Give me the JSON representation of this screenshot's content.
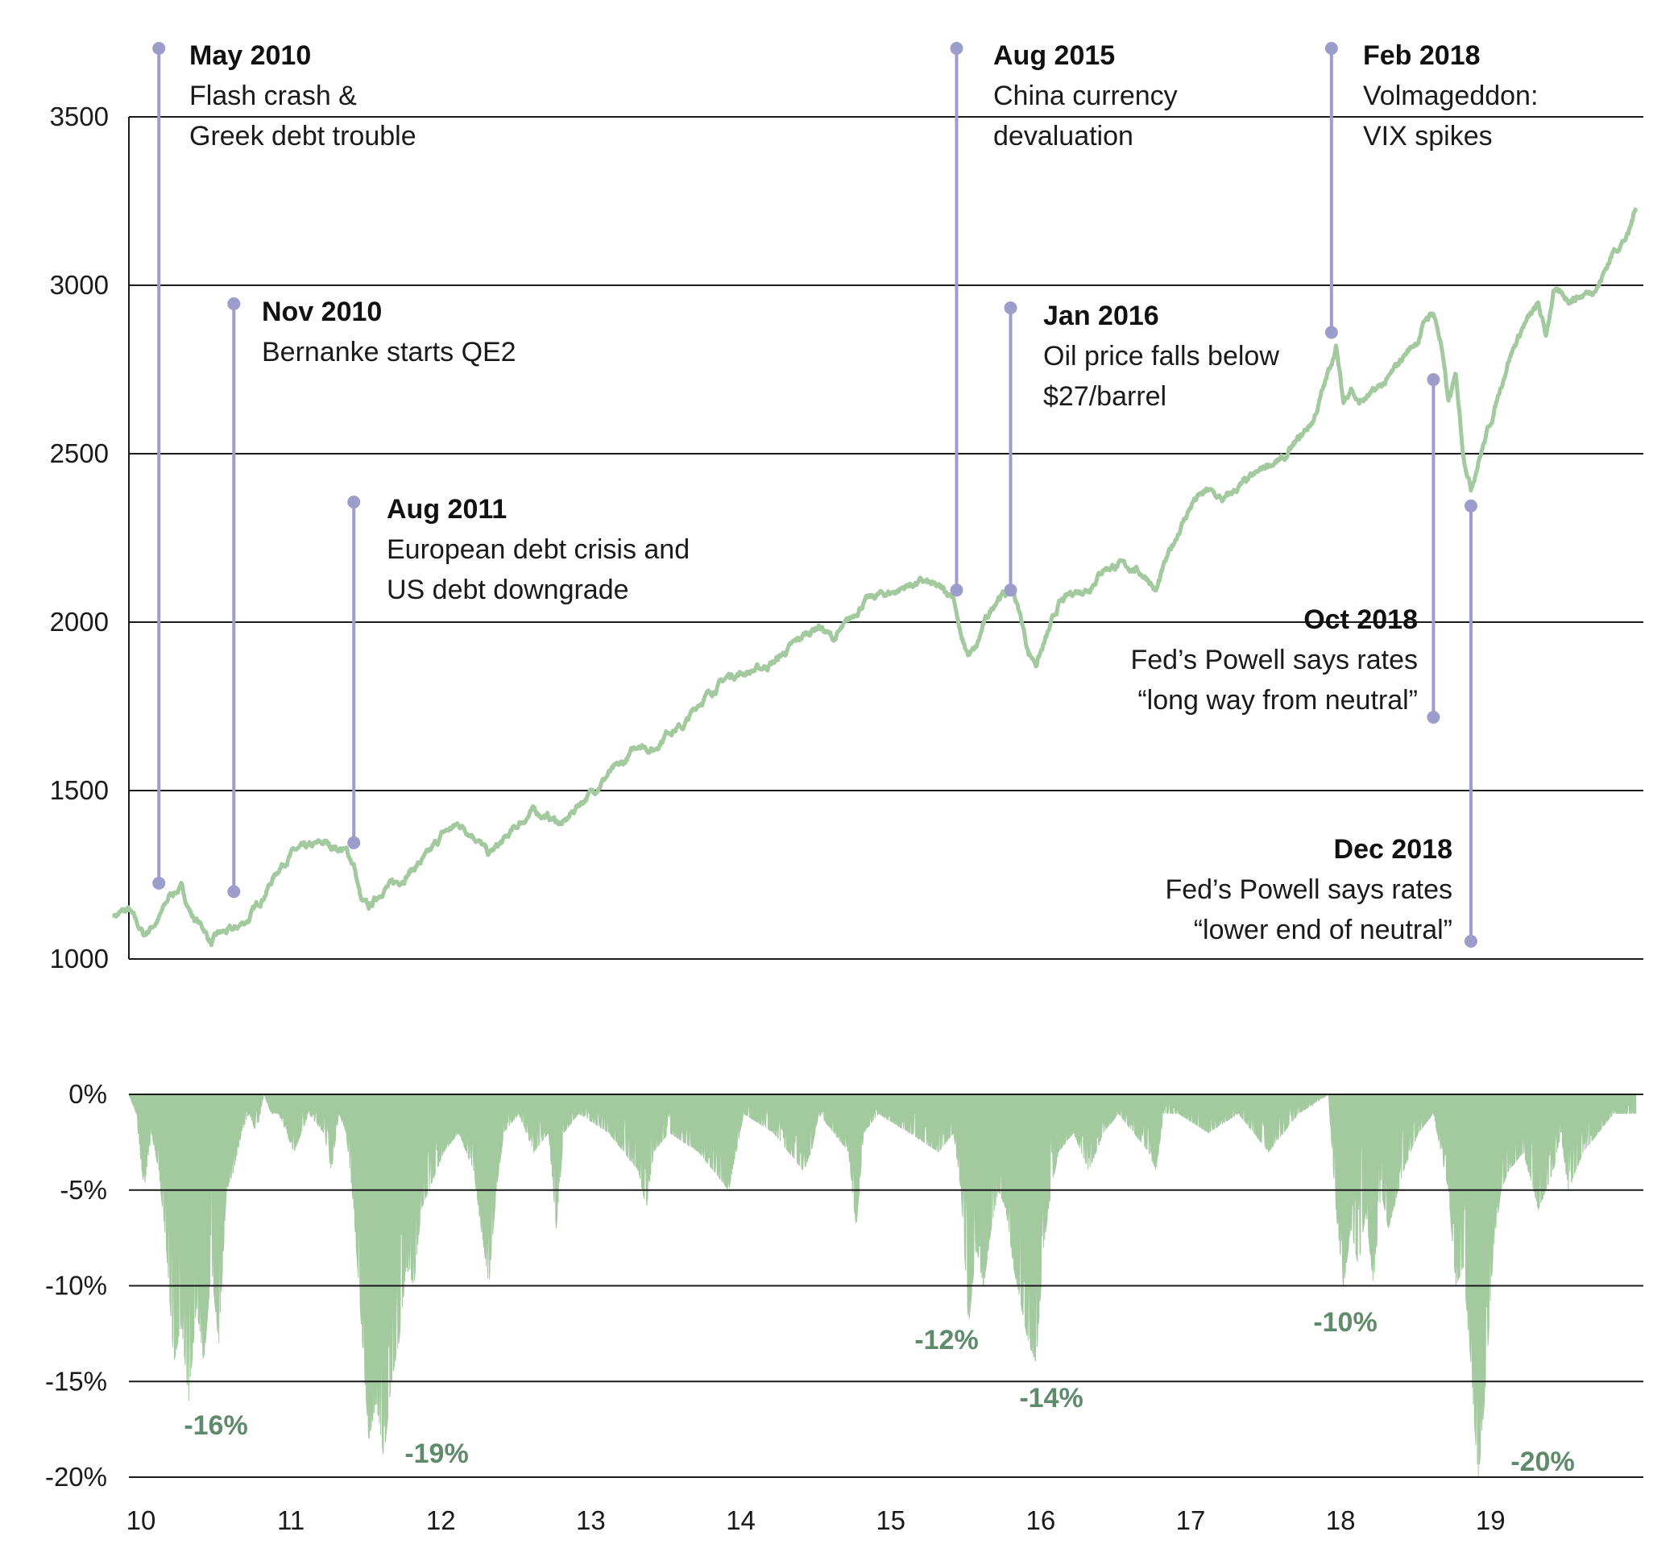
{
  "colors": {
    "price_line": "#a3c99f",
    "drawdown_fill": "#a3c99f",
    "annotation_marker": "#9d9dcc",
    "drawdown_label": "#5f8a6b",
    "grid": "#1a1a1a"
  },
  "chart_data": [
    {
      "type": "line",
      "title": "",
      "xlabel": "",
      "ylabel": "",
      "xlim": [
        2010.0,
        2020.1
      ],
      "ylim": [
        1000,
        3500
      ],
      "x_ticks": [
        {
          "value": 2010,
          "label": "10"
        },
        {
          "value": 2011,
          "label": "11"
        },
        {
          "value": 2012,
          "label": "12"
        },
        {
          "value": 2013,
          "label": "13"
        },
        {
          "value": 2014,
          "label": "14"
        },
        {
          "value": 2015,
          "label": "15"
        },
        {
          "value": 2016,
          "label": "16"
        },
        {
          "value": 2017,
          "label": "17"
        },
        {
          "value": 2018,
          "label": "18"
        },
        {
          "value": 2019,
          "label": "19"
        }
      ],
      "y_ticks": [
        {
          "value": 1000,
          "label": "1000"
        },
        {
          "value": 1500,
          "label": "1500"
        },
        {
          "value": 2000,
          "label": "2000"
        },
        {
          "value": 2500,
          "label": "2500"
        },
        {
          "value": 3000,
          "label": "3000"
        },
        {
          "value": 3500,
          "label": "3500"
        }
      ],
      "grid": true,
      "series": [
        {
          "x": [
            2009.9,
            2010.0,
            2010.1,
            2010.2,
            2010.28,
            2010.35,
            2010.42,
            2010.5,
            2010.55,
            2010.6,
            2010.7,
            2010.8,
            2010.9,
            2011.0,
            2011.1,
            2011.2,
            2011.3,
            2011.45,
            2011.5,
            2011.55,
            2011.6,
            2011.7,
            2011.8,
            2011.9,
            2012.0,
            2012.1,
            2012.2,
            2012.3,
            2012.4,
            2012.5,
            2012.6,
            2012.7,
            2012.8,
            2012.9,
            2013.0,
            2013.1,
            2013.2,
            2013.3,
            2013.4,
            2013.5,
            2013.6,
            2013.7,
            2013.8,
            2013.9,
            2014.0,
            2014.1,
            2014.2,
            2014.3,
            2014.4,
            2014.5,
            2014.6,
            2014.7,
            2014.8,
            2014.9,
            2015.0,
            2015.1,
            2015.2,
            2015.3,
            2015.4,
            2015.5,
            2015.55,
            2015.6,
            2015.65,
            2015.7,
            2015.8,
            2015.9,
            2015.95,
            2016.0,
            2016.05,
            2016.1,
            2016.2,
            2016.3,
            2016.4,
            2016.5,
            2016.6,
            2016.7,
            2016.8,
            2016.85,
            2016.9,
            2017.0,
            2017.1,
            2017.2,
            2017.3,
            2017.4,
            2017.5,
            2017.6,
            2017.7,
            2017.8,
            2017.9,
            2018.0,
            2018.05,
            2018.1,
            2018.15,
            2018.2,
            2018.3,
            2018.4,
            2018.5,
            2018.6,
            2018.65,
            2018.7,
            2018.75,
            2018.8,
            2018.85,
            2018.9,
            2018.95,
            2019.0,
            2019.1,
            2019.2,
            2019.3,
            2019.4,
            2019.45,
            2019.5,
            2019.6,
            2019.7,
            2019.8,
            2019.9,
            2020.0,
            2020.05
          ],
          "y": [
            1130,
            1145,
            1070,
            1120,
            1195,
            1210,
            1130,
            1090,
            1045,
            1075,
            1085,
            1120,
            1190,
            1270,
            1320,
            1330,
            1345,
            1320,
            1280,
            1170,
            1150,
            1210,
            1230,
            1270,
            1310,
            1375,
            1400,
            1370,
            1310,
            1350,
            1400,
            1440,
            1420,
            1400,
            1460,
            1500,
            1550,
            1580,
            1640,
            1620,
            1680,
            1690,
            1760,
            1800,
            1840,
            1850,
            1860,
            1880,
            1920,
            1960,
            1990,
            1950,
            2000,
            2060,
            2080,
            2090,
            2110,
            2120,
            2100,
            2080,
            1950,
            1900,
            1920,
            1990,
            2080,
            2090,
            2010,
            1910,
            1880,
            1930,
            2050,
            2090,
            2100,
            2160,
            2170,
            2160,
            2130,
            2090,
            2160,
            2270,
            2360,
            2390,
            2360,
            2400,
            2430,
            2470,
            2480,
            2540,
            2600,
            2740,
            2820,
            2650,
            2700,
            2650,
            2680,
            2720,
            2790,
            2840,
            2900,
            2920,
            2830,
            2650,
            2730,
            2500,
            2400,
            2480,
            2620,
            2780,
            2880,
            2940,
            2850,
            2980,
            2960,
            2970,
            3000,
            3100,
            3150,
            3230
          ]
        }
      ],
      "annotations": [
        {
          "x": 2010.2,
          "y": 1225,
          "title": "May 2010",
          "lines": [
            "Flash crash &",
            "Greek debt trouble"
          ]
        },
        {
          "x": 2010.7,
          "y": 1200,
          "title": "Nov 2010",
          "lines": [
            "Bernanke starts QE2"
          ]
        },
        {
          "x": 2011.5,
          "y": 1345,
          "title": "Aug 2011",
          "lines": [
            "European debt crisis and",
            "US debt downgrade"
          ]
        },
        {
          "x": 2015.52,
          "y": 2095,
          "title": "Aug 2015",
          "lines": [
            "China currency",
            "devaluation"
          ]
        },
        {
          "x": 2015.88,
          "y": 2095,
          "title": "Jan 2016",
          "lines": [
            "Oil price falls below",
            "$27/barrel"
          ]
        },
        {
          "x": 2018.02,
          "y": 2860,
          "title": "Feb 2018",
          "lines": [
            "Volmageddon:",
            "VIX spikes"
          ]
        },
        {
          "x": 2018.7,
          "y": 2720,
          "title": "Oct 2018",
          "lines": [
            "Fed’s Powell says rates",
            "“long way from neutral”"
          ]
        },
        {
          "x": 2018.95,
          "y": 2345,
          "title": "Dec 2018",
          "lines": [
            "Fed’s Powell says rates",
            "“lower end of neutral”"
          ]
        }
      ]
    },
    {
      "type": "area",
      "title": "",
      "xlabel": "",
      "ylabel": "",
      "xlim": [
        2010.0,
        2020.1
      ],
      "ylim": [
        -20,
        0
      ],
      "y_ticks": [
        {
          "value": 0,
          "label": "0%"
        },
        {
          "value": -5,
          "label": "-5%"
        },
        {
          "value": -10,
          "label": "-10%"
        },
        {
          "value": -15,
          "label": "-15%"
        },
        {
          "value": -20,
          "label": "-20%"
        }
      ],
      "grid": true,
      "series": [
        {
          "x": [
            2010.0,
            2010.05,
            2010.1,
            2010.15,
            2010.2,
            2010.25,
            2010.3,
            2010.35,
            2010.4,
            2010.45,
            2010.5,
            2010.55,
            2010.6,
            2010.65,
            2010.7,
            2010.75,
            2010.8,
            2010.85,
            2010.9,
            2010.95,
            2011.0,
            2011.1,
            2011.2,
            2011.3,
            2011.35,
            2011.4,
            2011.45,
            2011.5,
            2011.55,
            2011.6,
            2011.65,
            2011.7,
            2011.75,
            2011.8,
            2011.85,
            2011.9,
            2011.95,
            2012.0,
            2012.1,
            2012.2,
            2012.3,
            2012.35,
            2012.4,
            2012.45,
            2012.5,
            2012.6,
            2012.7,
            2012.8,
            2012.85,
            2012.9,
            2013.0,
            2013.2,
            2013.4,
            2013.45,
            2013.5,
            2013.6,
            2013.8,
            2014.0,
            2014.05,
            2014.1,
            2014.3,
            2014.5,
            2014.55,
            2014.6,
            2014.7,
            2014.8,
            2014.85,
            2014.9,
            2015.0,
            2015.2,
            2015.4,
            2015.5,
            2015.55,
            2015.6,
            2015.65,
            2015.7,
            2015.75,
            2015.8,
            2015.85,
            2015.9,
            2015.95,
            2016.0,
            2016.05,
            2016.1,
            2016.15,
            2016.2,
            2016.3,
            2016.4,
            2016.5,
            2016.6,
            2016.7,
            2016.8,
            2016.85,
            2016.9,
            2017.0,
            2017.2,
            2017.4,
            2017.6,
            2017.8,
            2018.0,
            2018.05,
            2018.1,
            2018.15,
            2018.2,
            2018.25,
            2018.3,
            2018.35,
            2018.4,
            2018.5,
            2018.6,
            2018.7,
            2018.75,
            2018.8,
            2018.85,
            2018.9,
            2018.95,
            2018.98,
            2019.0,
            2019.05,
            2019.1,
            2019.15,
            2019.2,
            2019.3,
            2019.4,
            2019.5,
            2019.55,
            2019.6,
            2019.7,
            2019.8,
            2019.9,
            2020.0,
            2020.05
          ],
          "y": [
            0,
            -1,
            -5,
            -2,
            -4,
            -8,
            -14,
            -12,
            -16,
            -11,
            -14,
            -9,
            -13,
            -5,
            -4,
            -2,
            -1,
            -2,
            0,
            -1,
            -1,
            -3,
            -1,
            -2,
            -4,
            -1,
            -2,
            -6,
            -12,
            -18,
            -16,
            -19,
            -15,
            -13,
            -9,
            -10,
            -6,
            -5,
            -3,
            -2,
            -4,
            -7,
            -10,
            -5,
            -2,
            -1,
            -3,
            -2,
            -7,
            -2,
            -1,
            -2,
            -4,
            -6,
            -3,
            -2,
            -3,
            -5,
            -3,
            -1,
            -2,
            -4,
            -3,
            -1,
            -2,
            -3,
            -7,
            -2,
            -1,
            -2,
            -3,
            -2,
            -5,
            -12,
            -8,
            -10,
            -7,
            -5,
            -6,
            -9,
            -11,
            -13,
            -14,
            -8,
            -5,
            -3,
            -2,
            -4,
            -2,
            -1,
            -2,
            -3,
            -4,
            -1,
            -1,
            -2,
            -1,
            -3,
            -1,
            0,
            -6,
            -10,
            -7,
            -9,
            -6,
            -10,
            -5,
            -7,
            -4,
            -2,
            -1,
            -3,
            -5,
            -10,
            -9,
            -14,
            -18,
            -20,
            -15,
            -8,
            -5,
            -4,
            -3,
            -6,
            -4,
            -2,
            -5,
            -3,
            -2,
            -1,
            -1,
            -1
          ]
        }
      ],
      "labels": [
        {
          "x": 2010.4,
          "y": -16,
          "text": "-16%"
        },
        {
          "x": 2011.72,
          "y": -19,
          "text": "-19%"
        },
        {
          "x": 2015.55,
          "y": -12,
          "text": "-12%"
        },
        {
          "x": 2016.08,
          "y": -14,
          "text": "-14%"
        },
        {
          "x": 2018.06,
          "y": -10,
          "text": "-10%"
        },
        {
          "x": 2019.0,
          "y": -20,
          "text": "-20%"
        }
      ]
    }
  ]
}
